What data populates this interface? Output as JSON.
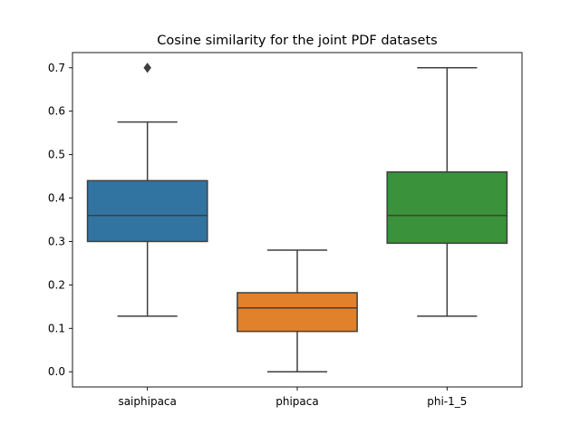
{
  "chart_data": {
    "type": "box",
    "title": "Cosine similarity for the joint PDF datasets",
    "xlabel": "",
    "ylabel": "",
    "ylim": [
      -0.035,
      0.735
    ],
    "yticks": [
      0.0,
      0.1,
      0.2,
      0.3,
      0.4,
      0.5,
      0.6,
      0.7
    ],
    "ytick_labels": [
      "0.0",
      "0.1",
      "0.2",
      "0.3",
      "0.4",
      "0.5",
      "0.6",
      "0.7"
    ],
    "categories": [
      "saiphipaca",
      "phipaca",
      "phi-1_5"
    ],
    "grid": false,
    "legend": "none",
    "boxes": [
      {
        "category": "saiphipaca",
        "color": "#3274a1",
        "whisker_low": 0.128,
        "q1": 0.3,
        "median": 0.36,
        "q3": 0.44,
        "whisker_high": 0.575,
        "outliers": [
          0.7
        ]
      },
      {
        "category": "phipaca",
        "color": "#e1812c",
        "whisker_low": 0.0,
        "q1": 0.093,
        "median": 0.147,
        "q3": 0.182,
        "whisker_high": 0.28,
        "outliers": []
      },
      {
        "category": "phi-1_5",
        "color": "#3a923a",
        "whisker_low": 0.128,
        "q1": 0.296,
        "median": 0.36,
        "q3": 0.46,
        "whisker_high": 0.7,
        "outliers": []
      }
    ],
    "line_color": "#3f3f3f"
  }
}
